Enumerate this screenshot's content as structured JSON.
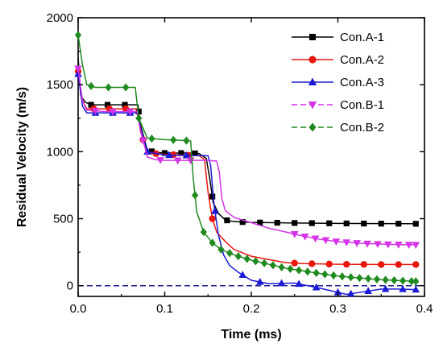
{
  "chart_data": {
    "type": "line",
    "title": "",
    "xlabel": "Time (ms)",
    "ylabel": "Residual Velocity (m/s)",
    "xlim": [
      0.0,
      0.4
    ],
    "ylim": [
      -80,
      2000
    ],
    "xticks": [
      0.0,
      0.1,
      0.2,
      0.3,
      0.4
    ],
    "xtick_labels": [
      "0.0",
      "0.1",
      "0.2",
      "0.3",
      "0.4"
    ],
    "yticks": [
      0,
      500,
      1000,
      1500,
      2000
    ],
    "ytick_labels": [
      "0",
      "500",
      "1000",
      "1500",
      "2000"
    ],
    "grid": false,
    "legend_position": "top-right",
    "reference_line": {
      "y": 0,
      "color": "#1f1f8f",
      "style": "dashed"
    },
    "series": [
      {
        "name": "Con.A-1",
        "color": "#000000",
        "marker": "square",
        "line_style": "solid",
        "points": [
          [
            0.0,
            1700
          ],
          [
            0.003,
            1420
          ],
          [
            0.008,
            1370
          ],
          [
            0.015,
            1350
          ],
          [
            0.03,
            1350
          ],
          [
            0.05,
            1350
          ],
          [
            0.069,
            1350
          ],
          [
            0.072,
            1200
          ],
          [
            0.08,
            1010
          ],
          [
            0.09,
            995
          ],
          [
            0.1,
            990
          ],
          [
            0.11,
            990
          ],
          [
            0.13,
            990
          ],
          [
            0.14,
            985
          ],
          [
            0.148,
            950
          ],
          [
            0.152,
            800
          ],
          [
            0.156,
            620
          ],
          [
            0.162,
            540
          ],
          [
            0.17,
            490
          ],
          [
            0.18,
            478
          ],
          [
            0.2,
            472
          ],
          [
            0.25,
            468
          ],
          [
            0.3,
            465
          ],
          [
            0.35,
            463
          ],
          [
            0.39,
            462
          ]
        ],
        "marker_x": [
          0.015,
          0.034,
          0.054,
          0.07,
          0.085,
          0.1,
          0.119,
          0.135,
          0.155,
          0.172,
          0.19,
          0.21,
          0.23,
          0.25,
          0.27,
          0.29,
          0.31,
          0.33,
          0.35,
          0.37,
          0.39
        ]
      },
      {
        "name": "Con.A-2",
        "color": "#e8170e",
        "marker": "circle",
        "line_style": "solid",
        "points": [
          [
            0.0,
            1600
          ],
          [
            0.005,
            1380
          ],
          [
            0.01,
            1320
          ],
          [
            0.02,
            1320
          ],
          [
            0.04,
            1320
          ],
          [
            0.06,
            1320
          ],
          [
            0.068,
            1320
          ],
          [
            0.072,
            1150
          ],
          [
            0.08,
            990
          ],
          [
            0.1,
            980
          ],
          [
            0.12,
            975
          ],
          [
            0.14,
            970
          ],
          [
            0.146,
            940
          ],
          [
            0.15,
            700
          ],
          [
            0.155,
            500
          ],
          [
            0.16,
            400
          ],
          [
            0.17,
            330
          ],
          [
            0.18,
            270
          ],
          [
            0.2,
            220
          ],
          [
            0.22,
            195
          ],
          [
            0.24,
            172
          ],
          [
            0.26,
            165
          ],
          [
            0.3,
            160
          ],
          [
            0.35,
            158
          ],
          [
            0.39,
            158
          ]
        ],
        "marker_x": [
          0.0,
          0.018,
          0.036,
          0.055,
          0.075,
          0.09,
          0.11,
          0.127,
          0.155,
          0.25,
          0.27,
          0.29,
          0.31,
          0.33,
          0.35,
          0.37,
          0.39
        ]
      },
      {
        "name": "Con.A-3",
        "color": "#1a1ad6",
        "marker": "triangle-up",
        "line_style": "solid",
        "points": [
          [
            0.0,
            1580
          ],
          [
            0.005,
            1340
          ],
          [
            0.01,
            1290
          ],
          [
            0.03,
            1290
          ],
          [
            0.05,
            1290
          ],
          [
            0.068,
            1290
          ],
          [
            0.072,
            1180
          ],
          [
            0.08,
            1000
          ],
          [
            0.1,
            975
          ],
          [
            0.12,
            972
          ],
          [
            0.14,
            972
          ],
          [
            0.15,
            970
          ],
          [
            0.153,
            900
          ],
          [
            0.157,
            600
          ],
          [
            0.162,
            380
          ],
          [
            0.168,
            230
          ],
          [
            0.175,
            150
          ],
          [
            0.185,
            100
          ],
          [
            0.2,
            40
          ],
          [
            0.22,
            15
          ],
          [
            0.25,
            20
          ],
          [
            0.28,
            -20
          ],
          [
            0.3,
            -50
          ],
          [
            0.31,
            -65
          ],
          [
            0.33,
            -45
          ],
          [
            0.35,
            -25
          ],
          [
            0.37,
            -25
          ],
          [
            0.39,
            -30
          ]
        ],
        "marker_x": [
          0.0,
          0.02,
          0.04,
          0.06,
          0.08,
          0.105,
          0.125,
          0.158,
          0.19,
          0.21,
          0.235,
          0.255,
          0.275,
          0.3,
          0.315,
          0.335,
          0.355,
          0.375,
          0.39
        ]
      },
      {
        "name": "Con.B-1",
        "color": "#d433e6",
        "marker": "triangle-down",
        "line_style": "dashed",
        "points": [
          [
            0.0,
            1620
          ],
          [
            0.005,
            1380
          ],
          [
            0.01,
            1310
          ],
          [
            0.03,
            1300
          ],
          [
            0.05,
            1300
          ],
          [
            0.068,
            1300
          ],
          [
            0.072,
            1160
          ],
          [
            0.08,
            960
          ],
          [
            0.09,
            940
          ],
          [
            0.1,
            935
          ],
          [
            0.12,
            935
          ],
          [
            0.15,
            935
          ],
          [
            0.16,
            930
          ],
          [
            0.163,
            850
          ],
          [
            0.166,
            650
          ],
          [
            0.17,
            560
          ],
          [
            0.18,
            510
          ],
          [
            0.2,
            470
          ],
          [
            0.22,
            430
          ],
          [
            0.24,
            400
          ],
          [
            0.26,
            370
          ],
          [
            0.28,
            345
          ],
          [
            0.3,
            328
          ],
          [
            0.33,
            315
          ],
          [
            0.36,
            308
          ],
          [
            0.39,
            305
          ]
        ],
        "marker_x": [
          0.0,
          0.02,
          0.04,
          0.06,
          0.075,
          0.095,
          0.115,
          0.13,
          0.25,
          0.262,
          0.274,
          0.286,
          0.298,
          0.31,
          0.322,
          0.334,
          0.346,
          0.358,
          0.37,
          0.382,
          0.39
        ]
      },
      {
        "name": "Con.B-2",
        "color": "#1f8a1f",
        "marker": "diamond",
        "line_style": "dashed",
        "points": [
          [
            0.0,
            1870
          ],
          [
            0.005,
            1650
          ],
          [
            0.01,
            1500
          ],
          [
            0.02,
            1480
          ],
          [
            0.04,
            1480
          ],
          [
            0.06,
            1480
          ],
          [
            0.066,
            1480
          ],
          [
            0.07,
            1250
          ],
          [
            0.08,
            1100
          ],
          [
            0.1,
            1090
          ],
          [
            0.12,
            1085
          ],
          [
            0.13,
            1080
          ],
          [
            0.133,
            800
          ],
          [
            0.137,
            550
          ],
          [
            0.145,
            400
          ],
          [
            0.155,
            320
          ],
          [
            0.165,
            270
          ],
          [
            0.18,
            230
          ],
          [
            0.2,
            190
          ],
          [
            0.22,
            160
          ],
          [
            0.24,
            130
          ],
          [
            0.26,
            110
          ],
          [
            0.28,
            90
          ],
          [
            0.3,
            72
          ],
          [
            0.32,
            60
          ],
          [
            0.35,
            45
          ],
          [
            0.39,
            32
          ]
        ],
        "marker_x": [
          0.0,
          0.015,
          0.035,
          0.055,
          0.07,
          0.085,
          0.11,
          0.125,
          0.135,
          0.145,
          0.155,
          0.165,
          0.175,
          0.185,
          0.195,
          0.205,
          0.215,
          0.225,
          0.235,
          0.245,
          0.255,
          0.265,
          0.275,
          0.285,
          0.295,
          0.305,
          0.315,
          0.325,
          0.335,
          0.345,
          0.355,
          0.365,
          0.375,
          0.385,
          0.39
        ]
      }
    ]
  }
}
